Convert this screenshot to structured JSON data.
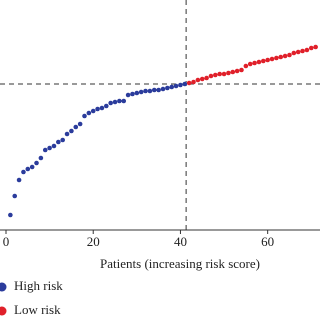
{
  "chart_data": {
    "type": "scatter",
    "x_label": "Patients (increasing risk score)",
    "xlim": [
      0,
      72
    ],
    "xticks": [
      0,
      20,
      40,
      60
    ],
    "ylim": [
      0,
      23
    ],
    "cutoff_x": 41.3,
    "cutoff_y": 14.6,
    "series": [
      {
        "name": "High risk",
        "color": "#2b3c9c",
        "x": [
          1,
          2,
          3,
          4,
          5,
          6,
          7,
          8,
          9,
          10,
          11,
          12,
          13,
          14,
          15,
          16,
          17,
          18,
          19,
          20,
          21,
          22,
          23,
          24,
          25,
          26,
          27,
          28,
          29,
          30,
          31,
          32,
          33,
          34,
          35,
          36,
          37,
          38,
          39,
          40,
          41
        ],
        "values": [
          1.5,
          3.4,
          5.0,
          5.8,
          6.1,
          6.3,
          6.7,
          7.2,
          8.0,
          8.2,
          8.4,
          8.8,
          9.0,
          9.6,
          9.9,
          10.3,
          10.6,
          11.4,
          11.7,
          11.9,
          12.1,
          12.2,
          12.4,
          12.7,
          12.8,
          12.9,
          12.9,
          13.5,
          13.6,
          13.7,
          13.8,
          13.9,
          13.9,
          14.0,
          14.0,
          14.1,
          14.2,
          14.3,
          14.4,
          14.5,
          14.6
        ]
      },
      {
        "name": "Low risk",
        "color": "#e0202a",
        "x": [
          42,
          43,
          44,
          45,
          46,
          47,
          48,
          49,
          50,
          51,
          52,
          53,
          54,
          55,
          56,
          57,
          58,
          59,
          60,
          61,
          62,
          63,
          64,
          65,
          66,
          67,
          68,
          69,
          70,
          71
        ],
        "values": [
          14.7,
          14.8,
          15.0,
          15.1,
          15.2,
          15.4,
          15.5,
          15.6,
          15.6,
          15.7,
          15.8,
          15.9,
          16.0,
          16.4,
          16.6,
          16.7,
          16.8,
          16.9,
          17.0,
          17.1,
          17.2,
          17.3,
          17.4,
          17.5,
          17.7,
          17.8,
          17.9,
          18.0,
          18.2,
          18.3
        ]
      }
    ]
  }
}
